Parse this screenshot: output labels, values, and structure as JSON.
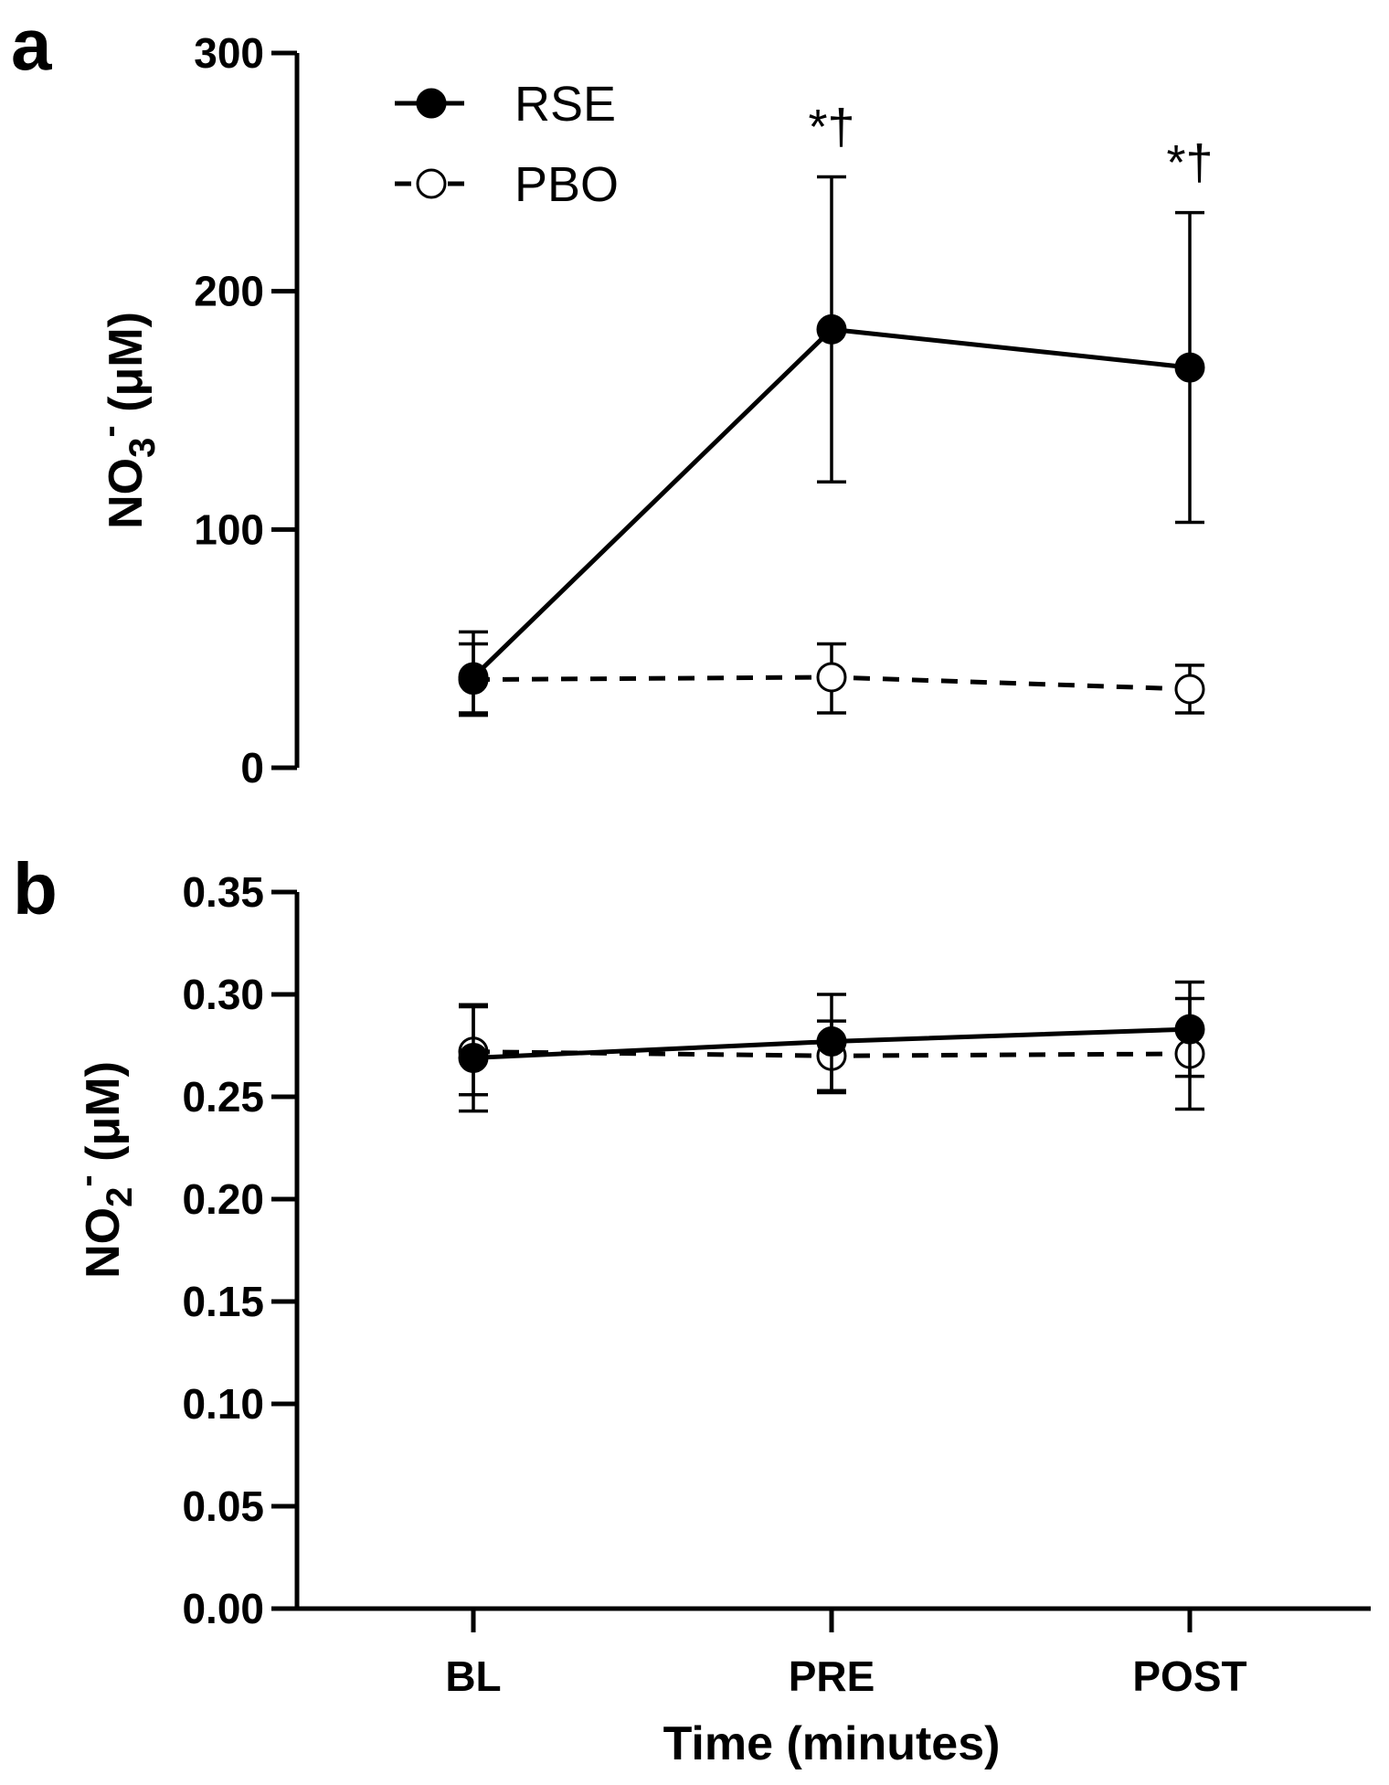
{
  "chart_data": [
    {
      "panel": "a",
      "type": "line",
      "categories": [
        "BL",
        "PRE",
        "POST"
      ],
      "ylabel_main": "NO",
      "ylabel_sub": "3",
      "ylabel_sup": "-",
      "ylabel_unit": " (μM)",
      "ylim": [
        0,
        300
      ],
      "yticks": [
        0,
        100,
        200,
        300
      ],
      "ytick_labels": [
        "0",
        "100",
        "200",
        "300"
      ],
      "series": [
        {
          "name": "RSE",
          "marker": "filled",
          "linestyle": "solid",
          "values": [
            38,
            184,
            168
          ],
          "err_low": [
            23,
            120,
            103
          ],
          "err_high": [
            57,
            248,
            233
          ]
        },
        {
          "name": "PBO",
          "marker": "open",
          "linestyle": "dashed",
          "values": [
            37,
            38,
            33
          ],
          "err_low": [
            22,
            23,
            23
          ],
          "err_high": [
            52,
            52,
            43
          ]
        }
      ],
      "annotations": [
        {
          "category": "PRE",
          "text": "*†",
          "y": 262
        },
        {
          "category": "POST",
          "text": "*†",
          "y": 247
        }
      ],
      "legend": {
        "position": "top-left",
        "entries": [
          "RSE",
          "PBO"
        ]
      }
    },
    {
      "panel": "b",
      "type": "line",
      "categories": [
        "BL",
        "PRE",
        "POST"
      ],
      "ylabel_main": "NO",
      "ylabel_sub": "2",
      "ylabel_sup": "-",
      "ylabel_unit": " (μM)",
      "xlabel": "Time (minutes)",
      "ylim": [
        0,
        0.35
      ],
      "yticks": [
        0,
        0.05,
        0.1,
        0.15,
        0.2,
        0.25,
        0.3,
        0.35
      ],
      "ytick_labels": [
        "0.00",
        "0.05",
        "0.10",
        "0.15",
        "0.20",
        "0.25",
        "0.30",
        "0.35"
      ],
      "series": [
        {
          "name": "RSE",
          "marker": "filled",
          "linestyle": "solid",
          "values": [
            0.269,
            0.277,
            0.283
          ],
          "err_low": [
            0.243,
            0.252,
            0.26
          ],
          "err_high": [
            0.294,
            0.3,
            0.306
          ]
        },
        {
          "name": "PBO",
          "marker": "open",
          "linestyle": "dashed",
          "values": [
            0.272,
            0.27,
            0.271
          ],
          "err_low": [
            0.251,
            0.253,
            0.244
          ],
          "err_high": [
            0.295,
            0.287,
            0.298
          ]
        }
      ]
    }
  ]
}
